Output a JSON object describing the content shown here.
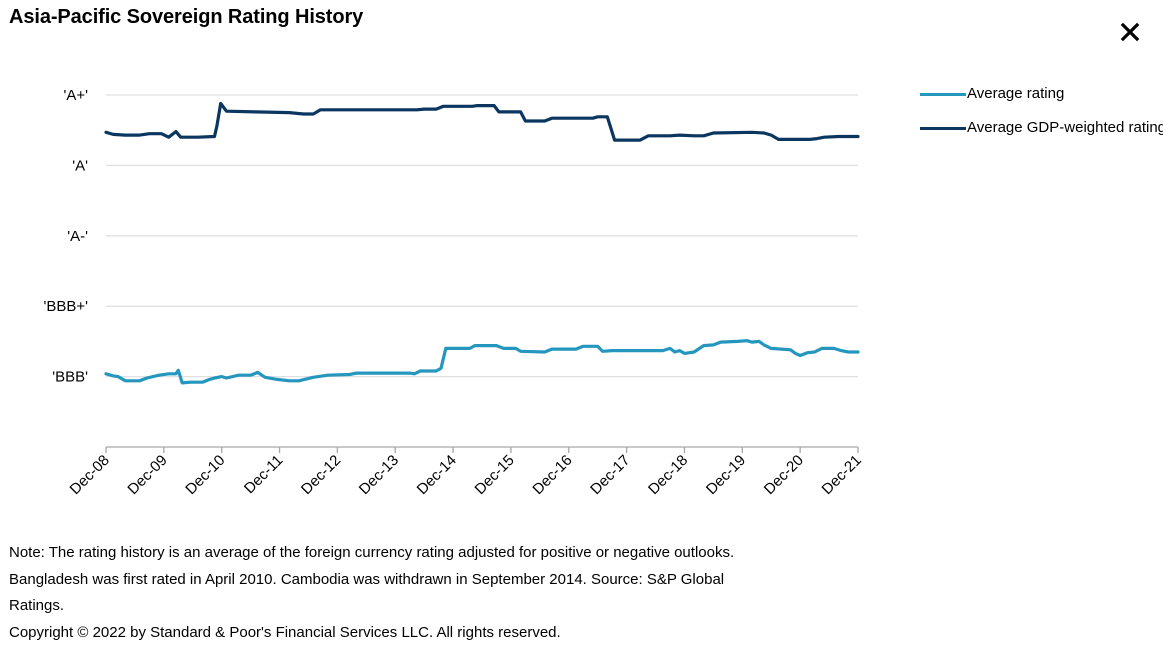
{
  "title": "Asia-Pacific Sovereign Rating History",
  "close_icon": "close-icon",
  "notes": [
    "Note: The rating history is an average of the foreign currency rating adjusted for positive or negative outlooks.",
    "Bangladesh was first rated in April 2010. Cambodia was withdrawn in September 2014. Source: S&P Global",
    "Ratings.",
    "Copyright © 2022 by Standard & Poor's Financial Services LLC. All rights reserved."
  ],
  "colors": {
    "average": "#2596be",
    "gdp_weighted": "#0b3660",
    "grid": "#e0e0e0",
    "axis": "#a6a6a6"
  },
  "chart_data": {
    "type": "line",
    "title": "Asia-Pacific Sovereign Rating History",
    "xlabel": "",
    "ylabel": "",
    "x_unit": "months since Dec-08",
    "x_range": [
      0,
      156
    ],
    "x_ticks": [
      {
        "label": "Dec-08",
        "x": 0
      },
      {
        "label": "Dec-09",
        "x": 12
      },
      {
        "label": "Dec-10",
        "x": 24
      },
      {
        "label": "Dec-11",
        "x": 36
      },
      {
        "label": "Dec-12",
        "x": 48
      },
      {
        "label": "Dec-13",
        "x": 60
      },
      {
        "label": "Dec-14",
        "x": 72
      },
      {
        "label": "Dec-15",
        "x": 84
      },
      {
        "label": "Dec-16",
        "x": 96
      },
      {
        "label": "Dec-17",
        "x": 108
      },
      {
        "label": "Dec-18",
        "x": 120
      },
      {
        "label": "Dec-19",
        "x": 132
      },
      {
        "label": "Dec-20",
        "x": 144
      },
      {
        "label": "Dec-21",
        "x": 156
      }
    ],
    "y_scale_note": "notch scale: 'BBB'=8, 'BBB+'=9, 'A-'=10, 'A'=11, 'A+'=12",
    "ylim": [
      7,
      12
    ],
    "y_ticks": [
      {
        "label": "'A+'",
        "y": 12
      },
      {
        "label": "'A'",
        "y": 11
      },
      {
        "label": "'A-'",
        "y": 10
      },
      {
        "label": "'BBB+'",
        "y": 9
      },
      {
        "label": "'BBB'",
        "y": 8
      }
    ],
    "grid": true,
    "legend_position": "right",
    "series": [
      {
        "name": "Average rating",
        "color": "#2596be",
        "points": [
          [
            0,
            8.04
          ],
          [
            1.5,
            8.01
          ],
          [
            2.5,
            8.0
          ],
          [
            4,
            7.94
          ],
          [
            7,
            7.94
          ],
          [
            8.5,
            7.98
          ],
          [
            11,
            8.02
          ],
          [
            13,
            8.04
          ],
          [
            14.5,
            8.04
          ],
          [
            15,
            8.09
          ],
          [
            15.8,
            7.91
          ],
          [
            17.5,
            7.92
          ],
          [
            20,
            7.92
          ],
          [
            21.5,
            7.96
          ],
          [
            22.5,
            7.98
          ],
          [
            24,
            8.0
          ],
          [
            25,
            7.98
          ],
          [
            27.5,
            8.02
          ],
          [
            30,
            8.02
          ],
          [
            31.5,
            8.06
          ],
          [
            33,
            7.99
          ],
          [
            35.5,
            7.96
          ],
          [
            38,
            7.94
          ],
          [
            40,
            7.94
          ],
          [
            43,
            7.99
          ],
          [
            46,
            8.02
          ],
          [
            50.5,
            8.03
          ],
          [
            52,
            8.05
          ],
          [
            63,
            8.05
          ],
          [
            64,
            8.04
          ],
          [
            65.2,
            8.08
          ],
          [
            68.5,
            8.08
          ],
          [
            69.5,
            8.12
          ],
          [
            70.5,
            8.4
          ],
          [
            75.5,
            8.4
          ],
          [
            76.5,
            8.44
          ],
          [
            81,
            8.44
          ],
          [
            82.5,
            8.4
          ],
          [
            85,
            8.4
          ],
          [
            86,
            8.36
          ],
          [
            91,
            8.35
          ],
          [
            92.5,
            8.39
          ],
          [
            97.5,
            8.39
          ],
          [
            99,
            8.43
          ],
          [
            102,
            8.43
          ],
          [
            103,
            8.36
          ],
          [
            105,
            8.37
          ],
          [
            113,
            8.37
          ],
          [
            115.5,
            8.37
          ],
          [
            117,
            8.4
          ],
          [
            118,
            8.35
          ],
          [
            119,
            8.37
          ],
          [
            120,
            8.33
          ],
          [
            122,
            8.35
          ],
          [
            124,
            8.44
          ],
          [
            126,
            8.45
          ],
          [
            127.5,
            8.49
          ],
          [
            131,
            8.5
          ],
          [
            133,
            8.51
          ],
          [
            134,
            8.49
          ],
          [
            135.5,
            8.5
          ],
          [
            136.5,
            8.45
          ],
          [
            138,
            8.4
          ],
          [
            142,
            8.38
          ],
          [
            143,
            8.33
          ],
          [
            144,
            8.3
          ],
          [
            145.5,
            8.34
          ],
          [
            147,
            8.35
          ],
          [
            148.5,
            8.4
          ],
          [
            151,
            8.4
          ],
          [
            152.5,
            8.37
          ],
          [
            154,
            8.35
          ],
          [
            156,
            8.35
          ]
        ]
      },
      {
        "name": "Average GDP-weighted rating",
        "color": "#0b3660",
        "points": [
          [
            0,
            11.47
          ],
          [
            1.5,
            11.44
          ],
          [
            4,
            11.43
          ],
          [
            7,
            11.43
          ],
          [
            9,
            11.45
          ],
          [
            11.5,
            11.45
          ],
          [
            13,
            11.4
          ],
          [
            14.5,
            11.48
          ],
          [
            15.5,
            11.4
          ],
          [
            19,
            11.4
          ],
          [
            22.5,
            11.41
          ],
          [
            23,
            11.56
          ],
          [
            23.8,
            11.88
          ],
          [
            25,
            11.77
          ],
          [
            31,
            11.76
          ],
          [
            38,
            11.75
          ],
          [
            41,
            11.73
          ],
          [
            43,
            11.73
          ],
          [
            44.5,
            11.79
          ],
          [
            47.5,
            11.79
          ],
          [
            57,
            11.79
          ],
          [
            64.5,
            11.79
          ],
          [
            66,
            11.8
          ],
          [
            68.5,
            11.8
          ],
          [
            70,
            11.84
          ],
          [
            76,
            11.84
          ],
          [
            77,
            11.85
          ],
          [
            80.5,
            11.85
          ],
          [
            81.5,
            11.76
          ],
          [
            86,
            11.76
          ],
          [
            87,
            11.63
          ],
          [
            91,
            11.63
          ],
          [
            92.5,
            11.67
          ],
          [
            95,
            11.67
          ],
          [
            101,
            11.67
          ],
          [
            102,
            11.69
          ],
          [
            104,
            11.69
          ],
          [
            105.5,
            11.36
          ],
          [
            110.8,
            11.36
          ],
          [
            112.5,
            11.42
          ],
          [
            117,
            11.42
          ],
          [
            119,
            11.43
          ],
          [
            122,
            11.42
          ],
          [
            124,
            11.42
          ],
          [
            126,
            11.46
          ],
          [
            134,
            11.47
          ],
          [
            136.5,
            11.46
          ],
          [
            138,
            11.43
          ],
          [
            139.5,
            11.37
          ],
          [
            146,
            11.37
          ],
          [
            147.5,
            11.38
          ],
          [
            149,
            11.4
          ],
          [
            152,
            11.41
          ],
          [
            156,
            11.41
          ]
        ]
      }
    ]
  }
}
